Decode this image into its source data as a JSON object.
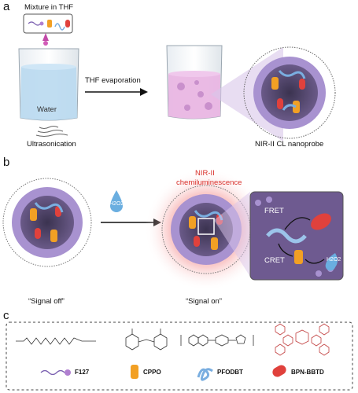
{
  "panel_a": {
    "letter": "a",
    "mixture_label": "Mixture in THF",
    "water_label": "Water",
    "arrow_label": "THF evaporation",
    "left_caption": "Ultrasonication",
    "right_caption": "NIR-II CL nanoprobe"
  },
  "panel_b": {
    "letter": "b",
    "emission_label_1": "NIR-II",
    "emission_label_2": "chemiluminescence",
    "reagent_label": "H2O2",
    "fret_label": "FRET",
    "cret_label": "CRET",
    "inset_reagent_label": "H2O2",
    "left_caption": "“Signal off”",
    "right_caption": "“Signal on”"
  },
  "panel_c": {
    "letter": "c",
    "legend": [
      {
        "label": "F127",
        "color": "#b07fd0"
      },
      {
        "label": "CPPO",
        "color": "#f2a024"
      },
      {
        "label": "PFODBT",
        "color": "#7aaee0"
      },
      {
        "label": "BPN-BBTD",
        "color": "#e0413c"
      }
    ]
  },
  "colors": {
    "water": "#b9d9f0",
    "pink_solution": "#e9b6e3",
    "shell": "#a892d0",
    "glow": "#f06a6a",
    "accent_red": "#d9302b"
  }
}
